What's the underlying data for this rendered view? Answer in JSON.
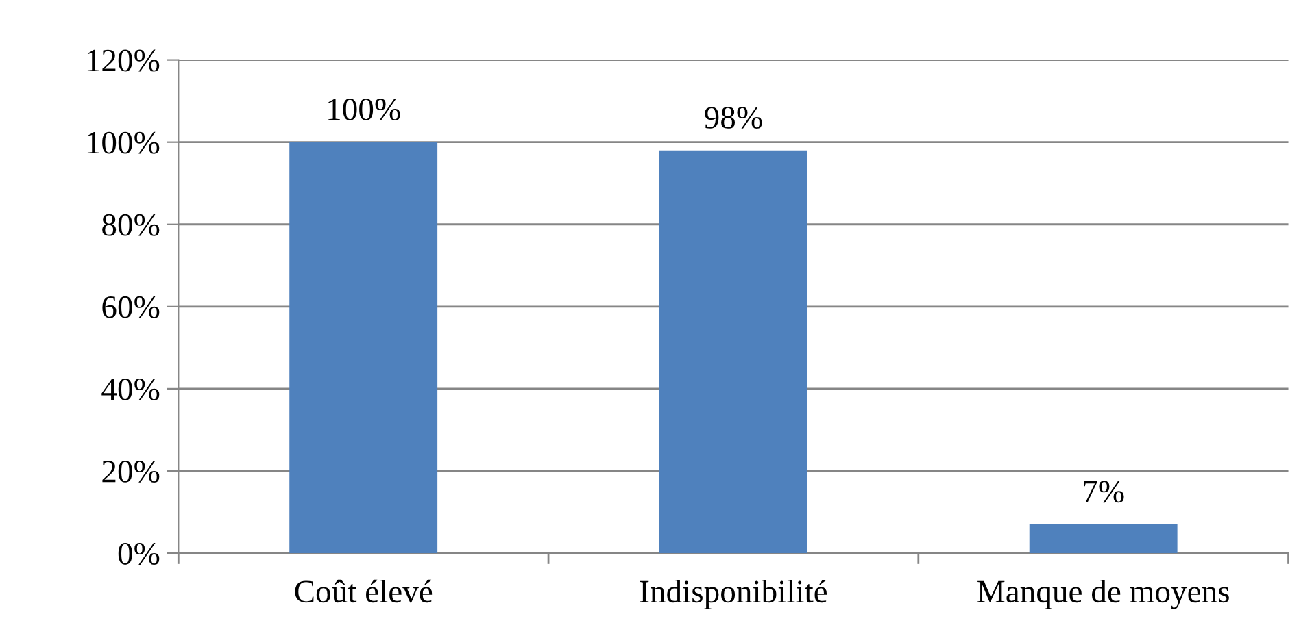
{
  "chart_data": {
    "type": "bar",
    "categories": [
      "Coût élevé",
      "Indisponibilité",
      "Manque de moyens"
    ],
    "values": [
      100,
      98,
      7
    ],
    "color": "#4f81bd",
    "data_labels": true,
    "value_labels": [
      "100%",
      "98%",
      "7%"
    ],
    "ylim": [
      0,
      120
    ],
    "yticks": [
      {
        "value": 0,
        "label": "0%"
      },
      {
        "value": 20,
        "label": "20%"
      },
      {
        "value": 40,
        "label": "40%"
      },
      {
        "value": 60,
        "label": "60%"
      },
      {
        "value": 80,
        "label": "80%"
      },
      {
        "value": 100,
        "label": "100%"
      },
      {
        "value": 120,
        "label": "120%"
      }
    ],
    "grid": "y",
    "legend": false
  }
}
